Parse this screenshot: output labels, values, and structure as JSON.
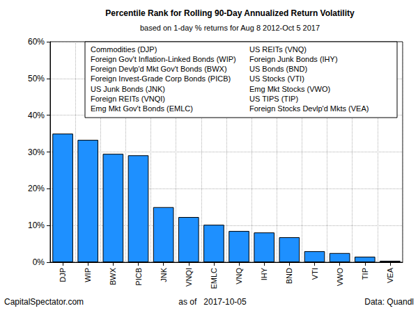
{
  "chart_data": {
    "type": "bar",
    "title": "Percentile Rank for Rolling 90-Day Annualized Return Volatility",
    "subtitle": "based on 1-day % returns for Aug 8 2012-Oct 5 2017",
    "categories": [
      "DJP",
      "WIP",
      "BWX",
      "PICB",
      "JNK",
      "VNQI",
      "EMLC",
      "VNQ",
      "IHY",
      "BND",
      "VTI",
      "VWO",
      "TIP",
      "VEA"
    ],
    "values": [
      35,
      33.3,
      29.5,
      29.1,
      15,
      12.3,
      10.2,
      8.5,
      8.1,
      6.8,
      3.0,
      2.5,
      1.5,
      0.4
    ],
    "color": "#1e90ff",
    "ylim": [
      0,
      60
    ],
    "yticks": [
      {
        "value": 0,
        "label": "0%"
      },
      {
        "value": 10,
        "label": "10%"
      },
      {
        "value": 20,
        "label": "20%"
      },
      {
        "value": 30,
        "label": "30%"
      },
      {
        "value": 40,
        "label": "40%"
      },
      {
        "value": 50,
        "label": "50%"
      },
      {
        "value": 60,
        "label": "60%"
      }
    ],
    "grid": true,
    "annotations": [
      "Commodities (DJP)",
      "Foreign Gov't Inflation-Linked Bonds (WIP)",
      "Foreign Devlp'd Mkt Gov't Bonds (BWX)",
      "Foreign Invest-Grade Corp Bonds (PICB)",
      "US Junk Bonds (JNK)",
      "Foreign REITs (VNQI)",
      "Emg Mkt Gov't Bonds (EMLC)",
      "US REITs (VNQ)",
      "Foreign Junk Bonds (IHY)",
      "US Bonds (BND)",
      "US Stocks (VTI)",
      "Emg Mkt Stocks (VWO)",
      "US TIPS (TIP)",
      "Foreign Stocks Devlp'd Mkts (VEA)"
    ],
    "footer": [
      "CapitalSpectator.com",
      "as of   2017-10-05",
      "Data: Quandl"
    ]
  }
}
